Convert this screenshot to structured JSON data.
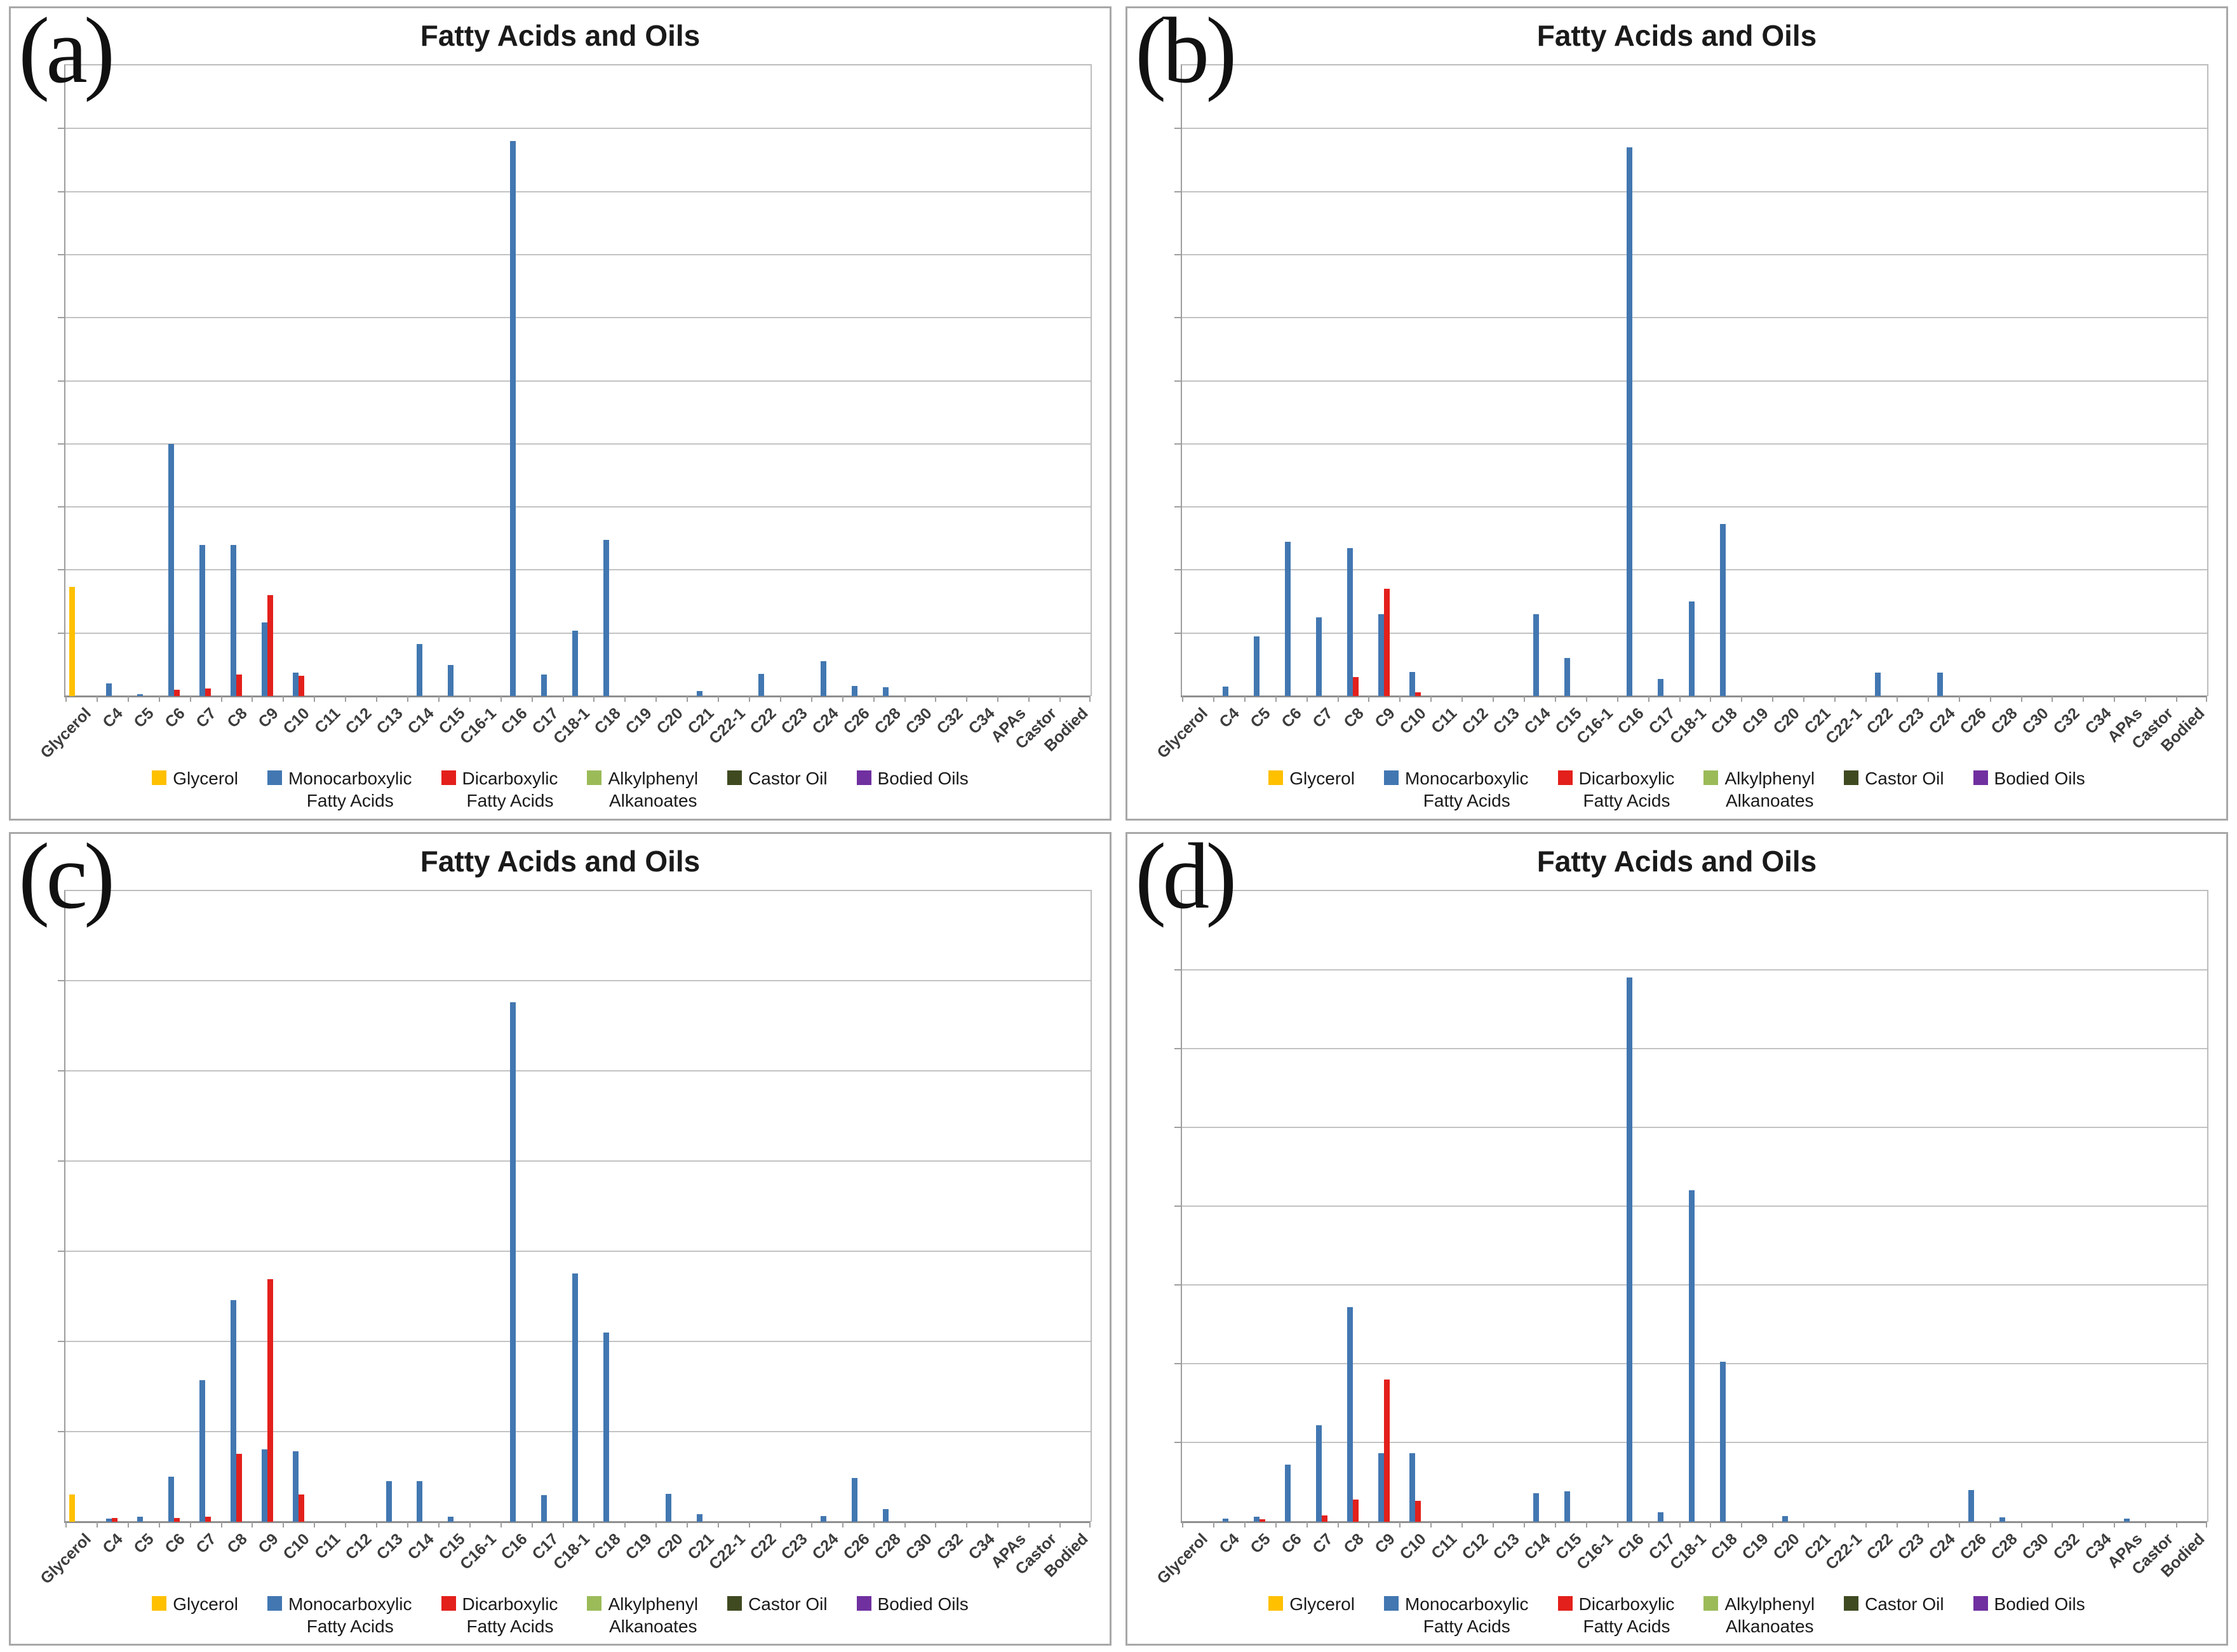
{
  "figure_title": "Fatty Acids and Oils (panels a-d)",
  "colors": {
    "glycerol": "#FFC000",
    "monocarboxylic": "#4277B1",
    "dicarboxylic": "#E3201B",
    "alkylphenyl": "#9BBB59",
    "castor_oil": "#3F4A21",
    "bodied_oils": "#7030A0",
    "gridline": "#c3c3c3",
    "axis": "#8f8f8f"
  },
  "legend": {
    "items": [
      {
        "key": "glycerol",
        "line1": "Glycerol",
        "line2": "",
        "color": "#FFC000"
      },
      {
        "key": "monocarboxylic",
        "line1": "Monocarboxylic",
        "line2": "Fatty Acids",
        "color": "#4277B1"
      },
      {
        "key": "dicarboxylic",
        "line1": "Dicarboxylic",
        "line2": "Fatty Acids",
        "color": "#E3201B"
      },
      {
        "key": "alkylphenyl",
        "line1": "Alkylphenyl",
        "line2": "Alkanoates",
        "color": "#9BBB59"
      },
      {
        "key": "castor_oil",
        "line1": "Castor Oil",
        "line2": "",
        "color": "#3F4A21"
      },
      {
        "key": "bodied_oils",
        "line1": "Bodied Oils",
        "line2": "",
        "color": "#7030A0"
      }
    ]
  },
  "chart_data": [
    {
      "type": "bar",
      "panel": "(a)",
      "title": "Fatty Acids and Oils",
      "xlabel": "",
      "ylabel": "",
      "grid": true,
      "grid_divisions": 10,
      "ylim": [
        0,
        10
      ],
      "y_units": "gridline divisions (y-axis unlabeled in source)",
      "legend_position": "bottom",
      "categories": [
        "Glycerol",
        "C4",
        "C5",
        "C6",
        "C7",
        "C8",
        "C9",
        "C10",
        "C11",
        "C12",
        "C13",
        "C14",
        "C15",
        "C16-1",
        "C16",
        "C17",
        "C18-1",
        "C18",
        "C19",
        "C20",
        "C21",
        "C22-1",
        "C22",
        "C23",
        "C24",
        "C26",
        "C28",
        "C30",
        "C32",
        "C34",
        "APAs",
        "Castor",
        "Bodied"
      ],
      "series": [
        {
          "name": "Glycerol",
          "color": "#FFC000",
          "values": [
            1.73,
            0,
            0,
            0,
            0,
            0,
            0,
            0,
            0,
            0,
            0,
            0,
            0,
            0,
            0,
            0,
            0,
            0,
            0,
            0,
            0,
            0,
            0,
            0,
            0,
            0,
            0,
            0,
            0,
            0,
            0,
            0,
            0
          ]
        },
        {
          "name": "Monocarboxylic Fatty Acids",
          "color": "#4277B1",
          "values": [
            0,
            0.2,
            0.03,
            4.0,
            2.4,
            2.4,
            1.17,
            0.37,
            0,
            0,
            0,
            0.83,
            0.49,
            0,
            8.8,
            0.34,
            1.04,
            2.48,
            0,
            0,
            0.08,
            0,
            0.35,
            0,
            0.55,
            0.16,
            0.14,
            0,
            0,
            0,
            0,
            0,
            0
          ]
        },
        {
          "name": "Dicarboxylic Fatty Acids",
          "color": "#E3201B",
          "values": [
            0,
            0,
            0,
            0.1,
            0.12,
            0.34,
            1.6,
            0.32,
            0,
            0,
            0,
            0,
            0,
            0,
            0,
            0,
            0,
            0,
            0,
            0,
            0,
            0,
            0,
            0,
            0,
            0,
            0,
            0,
            0,
            0,
            0,
            0,
            0
          ]
        },
        {
          "name": "Alkylphenyl Alkanoates",
          "color": "#9BBB59",
          "values": [
            0,
            0,
            0,
            0,
            0,
            0,
            0,
            0,
            0,
            0,
            0,
            0,
            0,
            0,
            0,
            0,
            0,
            0,
            0,
            0,
            0,
            0,
            0,
            0,
            0,
            0,
            0,
            0,
            0,
            0,
            0,
            0,
            0
          ]
        },
        {
          "name": "Castor Oil",
          "color": "#3F4A21",
          "values": [
            0,
            0,
            0,
            0,
            0,
            0,
            0,
            0,
            0,
            0,
            0,
            0,
            0,
            0,
            0,
            0,
            0,
            0,
            0,
            0,
            0,
            0,
            0,
            0,
            0,
            0,
            0,
            0,
            0,
            0,
            0,
            0,
            0
          ]
        },
        {
          "name": "Bodied Oils",
          "color": "#7030A0",
          "values": [
            0,
            0,
            0,
            0,
            0,
            0,
            0,
            0,
            0,
            0,
            0,
            0,
            0,
            0,
            0,
            0,
            0,
            0,
            0,
            0,
            0,
            0,
            0,
            0,
            0,
            0,
            0,
            0,
            0,
            0,
            0,
            0,
            0
          ]
        }
      ]
    },
    {
      "type": "bar",
      "panel": "(b)",
      "title": "Fatty Acids and Oils",
      "xlabel": "",
      "ylabel": "",
      "grid": true,
      "grid_divisions": 10,
      "ylim": [
        0,
        10
      ],
      "y_units": "gridline divisions (y-axis unlabeled in source)",
      "legend_position": "bottom",
      "categories": [
        "Glycerol",
        "C4",
        "C5",
        "C6",
        "C7",
        "C8",
        "C9",
        "C10",
        "C11",
        "C12",
        "C13",
        "C14",
        "C15",
        "C16-1",
        "C16",
        "C17",
        "C18-1",
        "C18",
        "C19",
        "C20",
        "C21",
        "C22-1",
        "C22",
        "C23",
        "C24",
        "C26",
        "C28",
        "C30",
        "C32",
        "C34",
        "APAs",
        "Castor",
        "Bodied"
      ],
      "series": [
        {
          "name": "Glycerol",
          "color": "#FFC000",
          "values": [
            0,
            0,
            0,
            0,
            0,
            0,
            0,
            0,
            0,
            0,
            0,
            0,
            0,
            0,
            0,
            0,
            0,
            0,
            0,
            0,
            0,
            0,
            0,
            0,
            0,
            0,
            0,
            0,
            0,
            0,
            0,
            0,
            0
          ]
        },
        {
          "name": "Monocarboxylic Fatty Acids",
          "color": "#4277B1",
          "values": [
            0,
            0.15,
            0.95,
            2.45,
            1.25,
            2.35,
            1.3,
            0.38,
            0,
            0,
            0,
            1.3,
            0.6,
            0,
            8.7,
            0.27,
            1.5,
            2.73,
            0,
            0,
            0,
            0,
            0.37,
            0,
            0.37,
            0,
            0,
            0,
            0,
            0,
            0,
            0,
            0
          ]
        },
        {
          "name": "Dicarboxylic Fatty Acids",
          "color": "#E3201B",
          "values": [
            0,
            0,
            0,
            0,
            0,
            0.3,
            1.7,
            0.06,
            0,
            0,
            0,
            0,
            0,
            0,
            0,
            0,
            0,
            0,
            0,
            0,
            0,
            0,
            0,
            0,
            0,
            0,
            0,
            0,
            0,
            0,
            0,
            0,
            0
          ]
        },
        {
          "name": "Alkylphenyl Alkanoates",
          "color": "#9BBB59",
          "values": [
            0,
            0,
            0,
            0,
            0,
            0,
            0,
            0,
            0,
            0,
            0,
            0,
            0,
            0,
            0,
            0,
            0,
            0,
            0,
            0,
            0,
            0,
            0,
            0,
            0,
            0,
            0,
            0,
            0,
            0,
            0,
            0,
            0
          ]
        },
        {
          "name": "Castor Oil",
          "color": "#3F4A21",
          "values": [
            0,
            0,
            0,
            0,
            0,
            0,
            0,
            0,
            0,
            0,
            0,
            0,
            0,
            0,
            0,
            0,
            0,
            0,
            0,
            0,
            0,
            0,
            0,
            0,
            0,
            0,
            0,
            0,
            0,
            0,
            0,
            0,
            0
          ]
        },
        {
          "name": "Bodied Oils",
          "color": "#7030A0",
          "values": [
            0,
            0,
            0,
            0,
            0,
            0,
            0,
            0,
            0,
            0,
            0,
            0,
            0,
            0,
            0,
            0,
            0,
            0,
            0,
            0,
            0,
            0,
            0,
            0,
            0,
            0,
            0,
            0,
            0,
            0,
            0,
            0,
            0
          ]
        }
      ]
    },
    {
      "type": "bar",
      "panel": "(c)",
      "title": "Fatty Acids and Oils",
      "xlabel": "",
      "ylabel": "",
      "grid": true,
      "grid_divisions": 7,
      "ylim": [
        0,
        7
      ],
      "y_units": "gridline divisions (y-axis unlabeled in source)",
      "legend_position": "bottom",
      "categories": [
        "Glycerol",
        "C4",
        "C5",
        "C6",
        "C7",
        "C8",
        "C9",
        "C10",
        "C11",
        "C12",
        "C13",
        "C14",
        "C15",
        "C16-1",
        "C16",
        "C17",
        "C18-1",
        "C18",
        "C19",
        "C20",
        "C21",
        "C22-1",
        "C22",
        "C23",
        "C24",
        "C26",
        "C28",
        "C30",
        "C32",
        "C34",
        "APAs",
        "Castor",
        "Bodied"
      ],
      "series": [
        {
          "name": "Glycerol",
          "color": "#FFC000",
          "values": [
            0.3,
            0,
            0,
            0,
            0,
            0,
            0,
            0,
            0,
            0,
            0,
            0,
            0,
            0,
            0,
            0,
            0,
            0,
            0,
            0,
            0,
            0,
            0,
            0,
            0,
            0,
            0,
            0,
            0,
            0,
            0,
            0,
            0
          ]
        },
        {
          "name": "Monocarboxylic Fatty Acids",
          "color": "#4277B1",
          "values": [
            0,
            0.03,
            0.05,
            0.5,
            1.57,
            2.46,
            0.8,
            0.78,
            0,
            0,
            0.45,
            0.45,
            0.05,
            0,
            5.76,
            0.29,
            2.75,
            2.1,
            0,
            0.31,
            0.08,
            0,
            0,
            0,
            0.06,
            0.48,
            0.14,
            0,
            0,
            0,
            0,
            0,
            0
          ]
        },
        {
          "name": "Dicarboxylic Fatty Acids",
          "color": "#E3201B",
          "values": [
            0,
            0.04,
            0,
            0.04,
            0.05,
            0.75,
            2.69,
            0.3,
            0,
            0,
            0,
            0,
            0,
            0,
            0,
            0,
            0,
            0,
            0,
            0,
            0,
            0,
            0,
            0,
            0,
            0,
            0,
            0,
            0,
            0,
            0,
            0,
            0
          ]
        },
        {
          "name": "Alkylphenyl Alkanoates",
          "color": "#9BBB59",
          "values": [
            0,
            0,
            0,
            0,
            0,
            0,
            0,
            0,
            0,
            0,
            0,
            0,
            0,
            0,
            0,
            0,
            0,
            0,
            0,
            0,
            0,
            0,
            0,
            0,
            0,
            0,
            0,
            0,
            0,
            0,
            0,
            0,
            0
          ]
        },
        {
          "name": "Castor Oil",
          "color": "#3F4A21",
          "values": [
            0,
            0,
            0,
            0,
            0,
            0,
            0,
            0,
            0,
            0,
            0,
            0,
            0,
            0,
            0,
            0,
            0,
            0,
            0,
            0,
            0,
            0,
            0,
            0,
            0,
            0,
            0,
            0,
            0,
            0,
            0,
            0,
            0
          ]
        },
        {
          "name": "Bodied Oils",
          "color": "#7030A0",
          "values": [
            0,
            0,
            0,
            0,
            0,
            0,
            0,
            0,
            0,
            0,
            0,
            0,
            0,
            0,
            0,
            0,
            0,
            0,
            0,
            0,
            0,
            0,
            0,
            0,
            0,
            0,
            0,
            0,
            0,
            0,
            0,
            0,
            0
          ]
        }
      ]
    },
    {
      "type": "bar",
      "panel": "(d)",
      "title": "Fatty Acids and Oils",
      "xlabel": "",
      "ylabel": "",
      "grid": true,
      "grid_divisions": 8,
      "ylim": [
        0,
        8
      ],
      "y_units": "gridline divisions (y-axis unlabeled in source)",
      "legend_position": "bottom",
      "categories": [
        "Glycerol",
        "C4",
        "C5",
        "C6",
        "C7",
        "C8",
        "C9",
        "C10",
        "C11",
        "C12",
        "C13",
        "C14",
        "C15",
        "C16-1",
        "C16",
        "C17",
        "C18-1",
        "C18",
        "C19",
        "C20",
        "C21",
        "C22-1",
        "C22",
        "C23",
        "C24",
        "C26",
        "C28",
        "C30",
        "C32",
        "C34",
        "APAs",
        "Castor",
        "Bodied"
      ],
      "series": [
        {
          "name": "Glycerol",
          "color": "#FFC000",
          "values": [
            0,
            0,
            0,
            0,
            0,
            0,
            0,
            0,
            0,
            0,
            0,
            0,
            0,
            0,
            0,
            0,
            0,
            0,
            0,
            0,
            0,
            0,
            0,
            0,
            0,
            0,
            0,
            0,
            0,
            0,
            0,
            0,
            0
          ]
        },
        {
          "name": "Monocarboxylic Fatty Acids",
          "color": "#4277B1",
          "values": [
            0,
            0.04,
            0.06,
            0.72,
            1.22,
            2.72,
            0.87,
            0.87,
            0,
            0,
            0,
            0.36,
            0.38,
            0,
            6.9,
            0.12,
            4.2,
            2.03,
            0,
            0.07,
            0,
            0,
            0,
            0,
            0,
            0.4,
            0.05,
            0,
            0,
            0,
            0.04,
            0,
            0
          ]
        },
        {
          "name": "Dicarboxylic Fatty Acids",
          "color": "#E3201B",
          "values": [
            0,
            0,
            0.03,
            0,
            0.08,
            0.28,
            1.8,
            0.26,
            0,
            0,
            0,
            0,
            0,
            0,
            0,
            0,
            0,
            0,
            0,
            0,
            0,
            0,
            0,
            0,
            0,
            0,
            0,
            0,
            0,
            0,
            0,
            0,
            0
          ]
        },
        {
          "name": "Alkylphenyl Alkanoates",
          "color": "#9BBB59",
          "values": [
            0,
            0,
            0,
            0,
            0,
            0,
            0,
            0,
            0,
            0,
            0,
            0,
            0,
            0,
            0,
            0,
            0,
            0,
            0,
            0,
            0,
            0,
            0,
            0,
            0,
            0,
            0,
            0,
            0,
            0,
            0,
            0,
            0
          ]
        },
        {
          "name": "Castor Oil",
          "color": "#3F4A21",
          "values": [
            0,
            0,
            0,
            0,
            0,
            0,
            0,
            0,
            0,
            0,
            0,
            0,
            0,
            0,
            0,
            0,
            0,
            0,
            0,
            0,
            0,
            0,
            0,
            0,
            0,
            0,
            0,
            0,
            0,
            0,
            0,
            0,
            0
          ]
        },
        {
          "name": "Bodied Oils",
          "color": "#7030A0",
          "values": [
            0,
            0,
            0,
            0,
            0,
            0,
            0,
            0,
            0,
            0,
            0,
            0,
            0,
            0,
            0,
            0,
            0,
            0,
            0,
            0,
            0,
            0,
            0,
            0,
            0,
            0,
            0,
            0,
            0,
            0,
            0,
            0,
            0
          ]
        }
      ]
    }
  ]
}
